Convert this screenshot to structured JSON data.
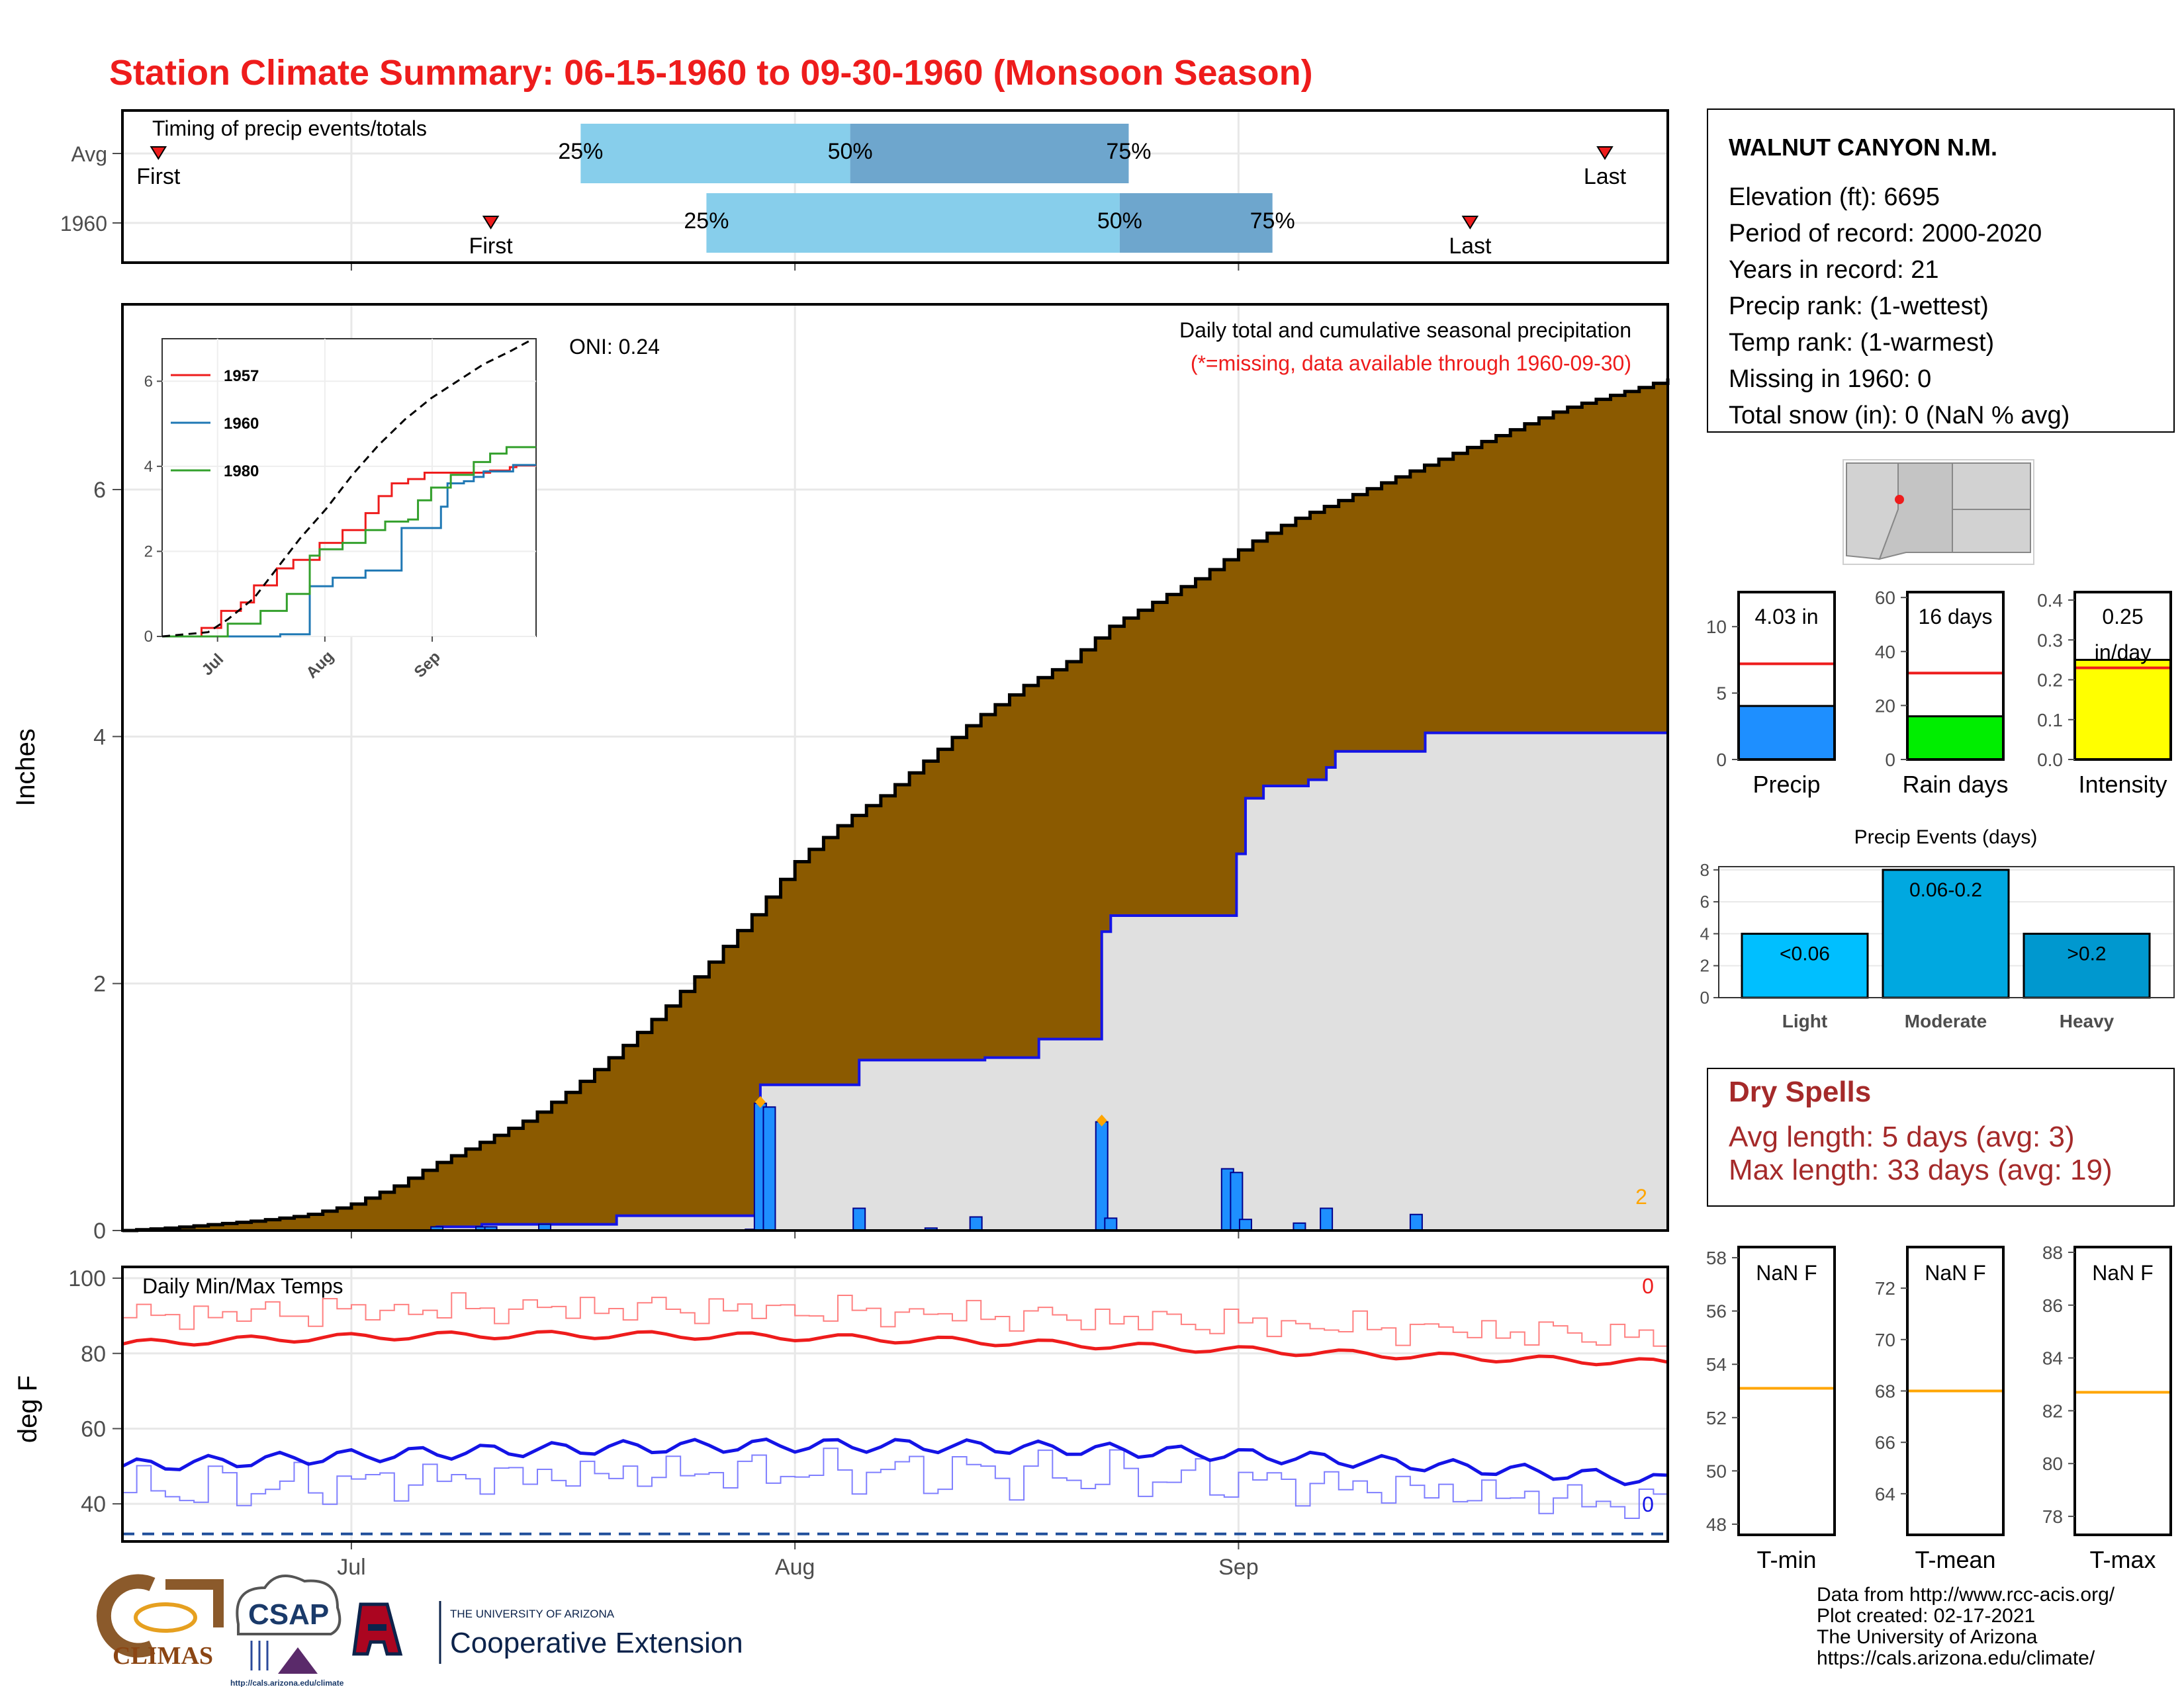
{
  "colors": {
    "title": "#ee1c1c",
    "brown": "#8b5a00",
    "gray_fill": "#e0e0e0",
    "bar_blue": "#1e8fff",
    "line_blue": "#1414e6",
    "timing_light": "#87ceeb",
    "timing_dark": "#6ea6cd",
    "dry_red": "#a52a2a",
    "tmin_red": "#ee1c1c",
    "tmean_orange": "#ffa500",
    "rain_green": "#00ee00",
    "intensity_yellow": "#ffff00",
    "event_light": "#00bfff",
    "event_mod": "#00a8e0",
    "event_heavy": "#0098cf"
  },
  "header": {
    "title": "Station Climate Summary: 06-15-1960 to 09-30-1960 (Monsoon Season)"
  },
  "chart_data": [
    {
      "type": "bar",
      "id": "timing",
      "title": "Timing of precip events/totals",
      "categories": [
        "Avg",
        "1960"
      ],
      "rows": [
        {
          "label": "Avg",
          "first_day": 4,
          "p25": 51,
          "p50": 81,
          "p75": 112,
          "last_day": 165,
          "first_label": "First",
          "last_label": "Last",
          "p25_label": "25%",
          "p50_label": "50%",
          "p75_label": "75%"
        },
        {
          "label": "1960",
          "first_day": 41,
          "p25": 65,
          "p50": 111,
          "p75": 128,
          "last_day": 150,
          "first_label": "First",
          "last_label": "Last",
          "p25_label": "25%",
          "p50_label": "50%",
          "p75_label": "75%"
        }
      ]
    },
    {
      "type": "area",
      "id": "precip",
      "title": "Daily total and cumulative seasonal precipitation",
      "subtitle": "(*=missing, data available through 1960-09-30)",
      "oni": "ONI: 0.24",
      "ylabel": "Inches",
      "ylim": [
        0,
        7.5
      ],
      "yticks": [
        0,
        2,
        4,
        6
      ],
      "corner_count": "2",
      "avg_cumulative": [
        [
          0,
          0
        ],
        [
          5,
          0.02
        ],
        [
          10,
          0.05
        ],
        [
          15,
          0.08
        ],
        [
          20,
          0.12
        ],
        [
          25,
          0.2
        ],
        [
          30,
          0.35
        ],
        [
          35,
          0.55
        ],
        [
          40,
          0.72
        ],
        [
          45,
          0.9
        ],
        [
          50,
          1.15
        ],
        [
          55,
          1.45
        ],
        [
          60,
          1.78
        ],
        [
          65,
          2.15
        ],
        [
          70,
          2.55
        ],
        [
          75,
          3.0
        ],
        [
          80,
          3.3
        ],
        [
          85,
          3.55
        ],
        [
          90,
          3.85
        ],
        [
          95,
          4.15
        ],
        [
          100,
          4.4
        ],
        [
          105,
          4.6
        ],
        [
          110,
          4.9
        ],
        [
          115,
          5.1
        ],
        [
          120,
          5.3
        ],
        [
          125,
          5.55
        ],
        [
          130,
          5.75
        ],
        [
          135,
          5.9
        ],
        [
          140,
          6.05
        ],
        [
          145,
          6.2
        ],
        [
          150,
          6.35
        ],
        [
          155,
          6.5
        ],
        [
          160,
          6.65
        ],
        [
          165,
          6.75
        ],
        [
          170,
          6.85
        ],
        [
          172,
          6.9
        ]
      ],
      "year_cumulative": [
        [
          0,
          0
        ],
        [
          35,
          0.03
        ],
        [
          40,
          0.05
        ],
        [
          55,
          0.12
        ],
        [
          70,
          0.12
        ],
        [
          71,
          1.18
        ],
        [
          78,
          1.18
        ],
        [
          82,
          1.38
        ],
        [
          96,
          1.4
        ],
        [
          102,
          1.55
        ],
        [
          108,
          1.55
        ],
        [
          109,
          2.42
        ],
        [
          110,
          2.55
        ],
        [
          123,
          2.55
        ],
        [
          124,
          3.05
        ],
        [
          125,
          3.5
        ],
        [
          127,
          3.6
        ],
        [
          132,
          3.65
        ],
        [
          134,
          3.75
        ],
        [
          135,
          3.88
        ],
        [
          144,
          3.88
        ],
        [
          145,
          4.03
        ],
        [
          172,
          4.03
        ]
      ],
      "daily_bars": [
        [
          35,
          0.03
        ],
        [
          40,
          0.03
        ],
        [
          41,
          0.03
        ],
        [
          47,
          0.05
        ],
        [
          70,
          0.01
        ],
        [
          71,
          1.03
        ],
        [
          72,
          1.0
        ],
        [
          82,
          0.18
        ],
        [
          90,
          0.02
        ],
        [
          95,
          0.11
        ],
        [
          109,
          0.88
        ],
        [
          110,
          0.1
        ],
        [
          123,
          0.5
        ],
        [
          124,
          0.47
        ],
        [
          125,
          0.09
        ],
        [
          131,
          0.06
        ],
        [
          134,
          0.18
        ],
        [
          144,
          0.13
        ]
      ],
      "missing_markers": [
        [
          71,
          1.03
        ],
        [
          109,
          0.88
        ]
      ]
    },
    {
      "type": "line",
      "id": "inset",
      "categories": [
        "Jul",
        "Aug",
        "Sep"
      ],
      "ylim": [
        0,
        7
      ],
      "yticks": [
        0,
        2,
        4,
        6
      ],
      "series": [
        {
          "name": "1957",
          "color": "#ee1c1c",
          "values": [
            [
              0,
              0
            ],
            [
              12,
              0.2
            ],
            [
              18,
              0.6
            ],
            [
              24,
              0.8
            ],
            [
              28,
              1.2
            ],
            [
              35,
              1.6
            ],
            [
              40,
              1.8
            ],
            [
              48,
              2.2
            ],
            [
              55,
              2.5
            ],
            [
              62,
              2.9
            ],
            [
              66,
              3.3
            ],
            [
              70,
              3.6
            ],
            [
              75,
              3.7
            ],
            [
              80,
              3.85
            ],
            [
              90,
              3.85
            ],
            [
              100,
              3.9
            ],
            [
              106,
              3.98
            ],
            [
              108,
              4.02
            ],
            [
              114,
              4.02
            ]
          ]
        },
        {
          "name": "1960",
          "color": "#1f78b4",
          "values": [
            [
              0,
              0
            ],
            [
              36,
              0.05
            ],
            [
              40,
              0.05
            ],
            [
              45,
              1.18
            ],
            [
              52,
              1.38
            ],
            [
              62,
              1.55
            ],
            [
              72,
              1.55
            ],
            [
              73,
              2.55
            ],
            [
              80,
              2.55
            ],
            [
              85,
              3.05
            ],
            [
              87,
              3.6
            ],
            [
              92,
              3.65
            ],
            [
              95,
              3.75
            ],
            [
              98,
              3.88
            ],
            [
              105,
              3.88
            ],
            [
              107,
              4.03
            ],
            [
              114,
              4.03
            ]
          ]
        },
        {
          "name": "1980",
          "color": "#33a02c",
          "values": [
            [
              0,
              0
            ],
            [
              20,
              0.3
            ],
            [
              30,
              0.6
            ],
            [
              38,
              1.0
            ],
            [
              45,
              1.9
            ],
            [
              48,
              2.05
            ],
            [
              55,
              2.2
            ],
            [
              62,
              2.5
            ],
            [
              68,
              2.7
            ],
            [
              75,
              2.75
            ],
            [
              78,
              3.2
            ],
            [
              82,
              3.5
            ],
            [
              88,
              3.8
            ],
            [
              95,
              4.1
            ],
            [
              100,
              4.3
            ],
            [
              105,
              4.45
            ],
            [
              114,
              4.45
            ]
          ]
        }
      ],
      "avg_line": [
        [
          0,
          0
        ],
        [
          14,
          0.1
        ],
        [
          20,
          0.4
        ],
        [
          28,
          0.9
        ],
        [
          35,
          1.6
        ],
        [
          42,
          2.3
        ],
        [
          50,
          3.0
        ],
        [
          58,
          3.8
        ],
        [
          66,
          4.5
        ],
        [
          74,
          5.1
        ],
        [
          82,
          5.6
        ],
        [
          90,
          6.0
        ],
        [
          98,
          6.4
        ],
        [
          106,
          6.7
        ],
        [
          112,
          6.95
        ]
      ]
    },
    {
      "type": "line",
      "id": "temps",
      "title": "Daily Min/Max Temps",
      "ylabel": "deg F",
      "ylim": [
        30,
        103
      ],
      "yticks": [
        40,
        60,
        80,
        100
      ],
      "xticks": [
        {
          "day": 16,
          "label": "Jul"
        },
        {
          "day": 47,
          "label": "Aug"
        },
        {
          "day": 78,
          "label": "Sep"
        }
      ],
      "count_max": "0",
      "count_min": "0",
      "freeze_line": 32
    },
    {
      "type": "bar",
      "id": "summary_bars",
      "panels": [
        {
          "name": "Precip",
          "label": "4.03 in",
          "value": 4.03,
          "avg": 7.2,
          "ylim": [
            0,
            12.6
          ],
          "yticks": [
            0,
            5,
            10
          ],
          "color": "#1e8fff"
        },
        {
          "name": "Rain days",
          "label": "16 days",
          "value": 16,
          "avg": 32,
          "ylim": [
            0,
            62
          ],
          "yticks": [
            0,
            20,
            40,
            60
          ],
          "color": "#00ee00"
        },
        {
          "name": "Intensity",
          "label": "0.25",
          "label2": "in/day",
          "value": 0.25,
          "avg": 0.23,
          "ylim": [
            0,
            0.42
          ],
          "yticks": [
            0.0,
            0.1,
            0.2,
            0.3,
            0.4
          ],
          "color": "#ffff00"
        }
      ]
    },
    {
      "type": "bar",
      "id": "precip_events",
      "title": "Precip Events (days)",
      "categories": [
        "Light",
        "Moderate",
        "Heavy"
      ],
      "values": [
        4,
        8,
        4
      ],
      "bar_labels": [
        "<0.06",
        "0.06-0.2",
        ">0.2"
      ],
      "ylim": [
        0,
        8.2
      ],
      "yticks": [
        0,
        2,
        4,
        6,
        8
      ]
    },
    {
      "type": "bar",
      "id": "temp_summary",
      "panels": [
        {
          "name": "T-min",
          "label": "NaN F",
          "avg": 53.1,
          "ylim": [
            47.6,
            58.4
          ],
          "yticks": [
            48,
            50,
            52,
            54,
            56,
            58
          ]
        },
        {
          "name": "T-mean",
          "label": "NaN F",
          "avg": 68.0,
          "ylim": [
            62.4,
            73.6
          ],
          "yticks": [
            64,
            66,
            68,
            70,
            72
          ]
        },
        {
          "name": "T-max",
          "label": "NaN F",
          "avg": 82.7,
          "ylim": [
            77.3,
            88.2
          ],
          "yticks": [
            78,
            80,
            82,
            84,
            86,
            88
          ]
        }
      ]
    }
  ],
  "station": {
    "name": "WALNUT CANYON N.M.",
    "lines": [
      "Elevation (ft): 6695",
      "Period of record: 2000-2020",
      "Years in record: 21",
      "Precip rank:  (1-wettest)",
      "Temp rank:  (1-warmest)",
      "Missing in 1960: 0",
      "Total snow (in): 0 (NaN % avg)"
    ]
  },
  "dry_spells": {
    "title": "Dry Spells",
    "avg": "Avg length: 5 days (avg: 3)",
    "max": "Max length: 33 days (avg: 19)"
  },
  "footer": {
    "lines": [
      "Data from http://www.rcc-acis.org/",
      "Plot created: 02-17-2021",
      "The University of Arizona",
      "https://cals.arizona.edu/climate/"
    ]
  },
  "logos": {
    "climas": "CLIMAS",
    "csap": "CSAP",
    "csap_url": "http://cals.arizona.edu/climate",
    "ua_small": "THE UNIVERSITY OF ARIZONA",
    "coop": "Cooperative Extension"
  }
}
